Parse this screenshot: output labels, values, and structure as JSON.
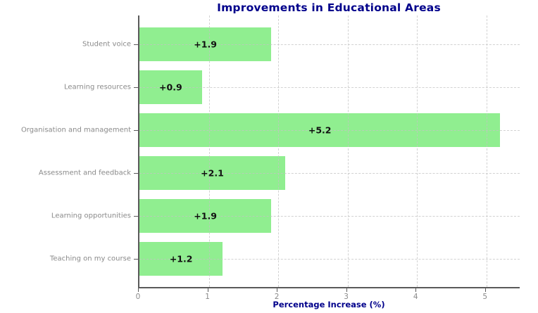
{
  "chart_data": {
    "type": "bar",
    "orientation": "horizontal",
    "title": "Improvements in Educational Areas",
    "xlabel": "Percentage Increase (%)",
    "ylabel": "",
    "categories": [
      "Student voice",
      "Learning resources",
      "Organisation and management",
      "Assessment and feedback",
      "Learning opportunities",
      "Teaching on my course"
    ],
    "values": [
      1.9,
      0.9,
      5.2,
      2.1,
      1.9,
      1.2
    ],
    "bar_labels": [
      "+1.9",
      "+0.9",
      "+5.2",
      "+2.1",
      "+1.9",
      "+1.2"
    ],
    "x_ticks": [
      0,
      1,
      2,
      3,
      4,
      5
    ],
    "xlim": [
      0,
      5.5
    ],
    "grid": "both, dashed, drawn over bars",
    "legend": "none",
    "colors": {
      "bar_fill": "#90EE90",
      "title": "#00008B",
      "axis_title": "#00008B",
      "tick_label": "#8a8a8a",
      "category_label": "#8a8a8a",
      "value_label": "#111111",
      "spine": "#5a5a5a"
    }
  }
}
